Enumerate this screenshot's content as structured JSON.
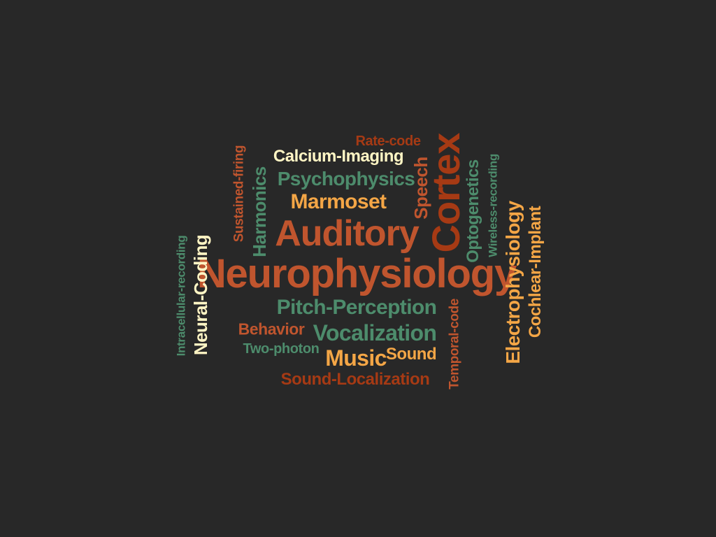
{
  "colors": {
    "background": "#282828",
    "orange": "#F4A646",
    "cream": "#FFF5C4",
    "rust": "#C0552E",
    "brick": "#A63A14",
    "teal": "#4D8C6C"
  },
  "words": [
    {
      "text": "Neurophysiology",
      "color": "#C0552E"
    },
    {
      "text": "Auditory",
      "color": "#C0552E"
    },
    {
      "text": "Cortex",
      "color": "#A63A14"
    },
    {
      "text": "Calcium-Imaging",
      "color": "#FFF5C4"
    },
    {
      "text": "Psychophysics",
      "color": "#4D8C6C"
    },
    {
      "text": "Marmoset",
      "color": "#F4A646"
    },
    {
      "text": "Rate-code",
      "color": "#A63A14"
    },
    {
      "text": "Speech",
      "color": "#C0552E"
    },
    {
      "text": "Harmonics",
      "color": "#4D8C6C"
    },
    {
      "text": "Sustained-firing",
      "color": "#C0552E"
    },
    {
      "text": "Optogenetics",
      "color": "#4D8C6C"
    },
    {
      "text": "Wireless-recording",
      "color": "#4D8C6C"
    },
    {
      "text": "Electrophysiology",
      "color": "#F4A646"
    },
    {
      "text": "Cochlear-Implant",
      "color": "#F4A646"
    },
    {
      "text": "Intracellular-recording",
      "color": "#4D8C6C"
    },
    {
      "text": "Neural-Coding",
      "color": "#FFF5C4"
    },
    {
      "text": "Pitch-Perception",
      "color": "#4D8C6C"
    },
    {
      "text": "Behavior",
      "color": "#C0552E"
    },
    {
      "text": "Vocalization",
      "color": "#4D8C6C"
    },
    {
      "text": "Two-photon",
      "color": "#4D8C6C"
    },
    {
      "text": "Music",
      "color": "#F4A646"
    },
    {
      "text": "Sound",
      "color": "#F4A646"
    },
    {
      "text": "Sound-Localization",
      "color": "#A63A14"
    },
    {
      "text": "Temporal-code",
      "color": "#C0552E"
    }
  ]
}
